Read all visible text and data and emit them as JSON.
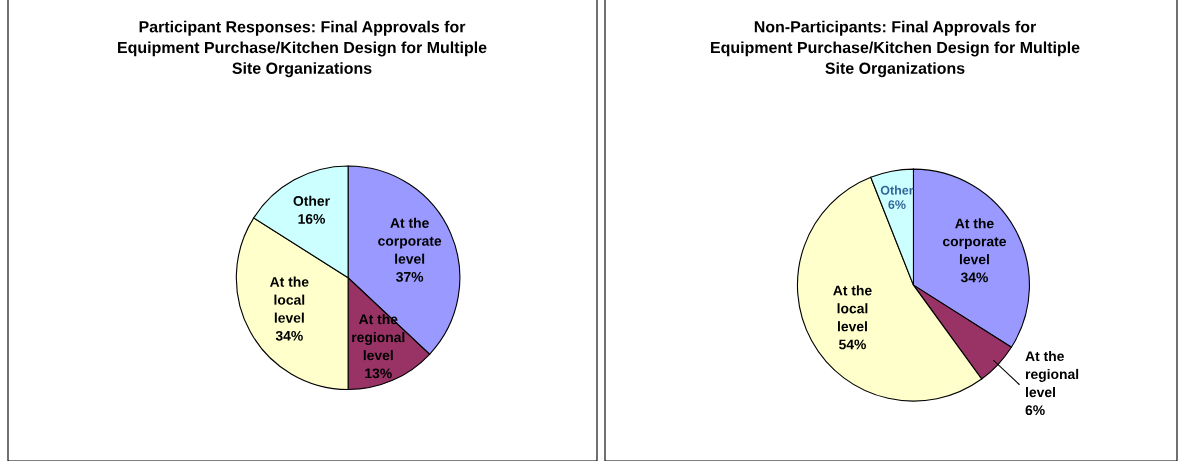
{
  "chart_data": [
    {
      "type": "pie",
      "title": "Participant Responses: Final Approvals for Equipment Purchase/Kitchen Design for Multiple Site Organizations",
      "categories": [
        "At the corporate level",
        "At the regional level",
        "At the local level",
        "Other"
      ],
      "values": [
        37,
        13,
        34,
        16
      ],
      "value_labels": [
        "37%",
        "13%",
        "34%",
        "16%"
      ],
      "colors": [
        "#9999ff",
        "#993366",
        "#ffffcc",
        "#ccffff"
      ],
      "legend": false
    },
    {
      "type": "pie",
      "title": "Non-Participants: Final Approvals for Equipment Purchase/Kitchen Design for Multiple Site Organizations",
      "categories": [
        "At the corporate level",
        "At the regional level",
        "At the local level",
        "Other"
      ],
      "values": [
        34,
        6,
        54,
        6
      ],
      "value_labels": [
        "34%",
        "6%",
        "54%",
        "6%"
      ],
      "colors": [
        "#9999ff",
        "#993366",
        "#ffffcc",
        "#ccffff"
      ],
      "legend": false
    }
  ]
}
